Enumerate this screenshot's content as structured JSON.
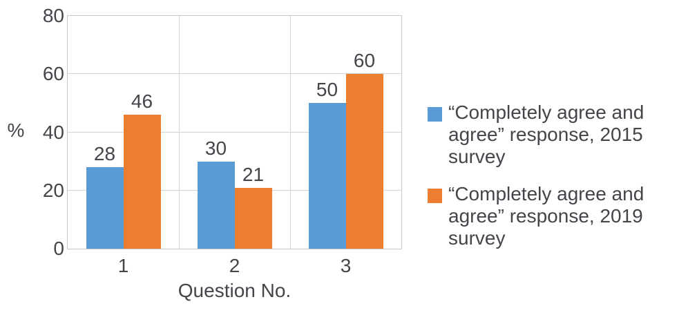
{
  "chart_data": {
    "type": "bar",
    "title": "",
    "categories": [
      "1",
      "2",
      "3"
    ],
    "series": [
      {
        "name": "“Completely agree and agree” response, 2015 survey",
        "color": "#5B9BD5",
        "values": [
          28,
          30,
          50
        ]
      },
      {
        "name": "“Completely agree and agree” response, 2019 survey",
        "color": "#ED7D31",
        "values": [
          46,
          21,
          60
        ]
      }
    ],
    "xlabel": "Question No.",
    "ylabel": "%",
    "ylim": [
      0,
      80
    ],
    "y_ticks": [
      0,
      20,
      40,
      60,
      80
    ],
    "grid": true,
    "data_labels": true,
    "legend_position": "right"
  },
  "style": {
    "text_color": "#42464B",
    "grid_color": "#d4d4d4",
    "axis_border_color": "#c8c8c8",
    "background_color": "#ffffff"
  }
}
